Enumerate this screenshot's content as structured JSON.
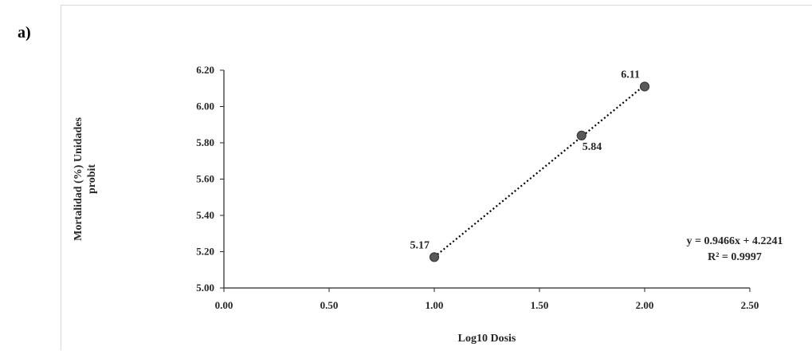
{
  "panel_label": "a)",
  "chart_data": {
    "type": "scatter",
    "title": "",
    "xlabel": "Log10 Dosis",
    "ylabel_lines": [
      "Mortalidad (%) Unidades",
      "probit"
    ],
    "xlim": [
      0,
      2.5
    ],
    "ylim": [
      5.0,
      6.2
    ],
    "xticks": [
      0,
      0.5,
      1.0,
      1.5,
      2.0,
      2.5
    ],
    "xtick_labels": [
      "0.00",
      "0.50",
      "1.00",
      "1.50",
      "2.00",
      "2.50"
    ],
    "yticks": [
      5.0,
      5.2,
      5.4,
      5.6,
      5.8,
      6.0,
      6.2
    ],
    "ytick_labels": [
      "5.00",
      "5.20",
      "5.40",
      "5.60",
      "5.80",
      "6.00",
      "6.20"
    ],
    "grid": false,
    "points": [
      {
        "x": 1.0,
        "y": 5.17,
        "label": "5.17",
        "label_pos": "above-left"
      },
      {
        "x": 1.7,
        "y": 5.84,
        "label": "5.84",
        "label_pos": "below-right"
      },
      {
        "x": 2.0,
        "y": 6.11,
        "label": "6.11",
        "label_pos": "above-left"
      }
    ],
    "trendline": {
      "type": "linear",
      "style": "dotted",
      "slope": 0.9466,
      "intercept": 4.2241,
      "x_range": [
        1.0,
        2.0
      ],
      "equation_label": "y = 0.9466x + 4.2241",
      "r2_label": "R² = 0.9997"
    },
    "colors": {
      "marker_fill": "#595959",
      "marker_stroke": "#3a3a3a",
      "axis": "#262626",
      "trendline": "#000000",
      "text": "#262626"
    }
  }
}
